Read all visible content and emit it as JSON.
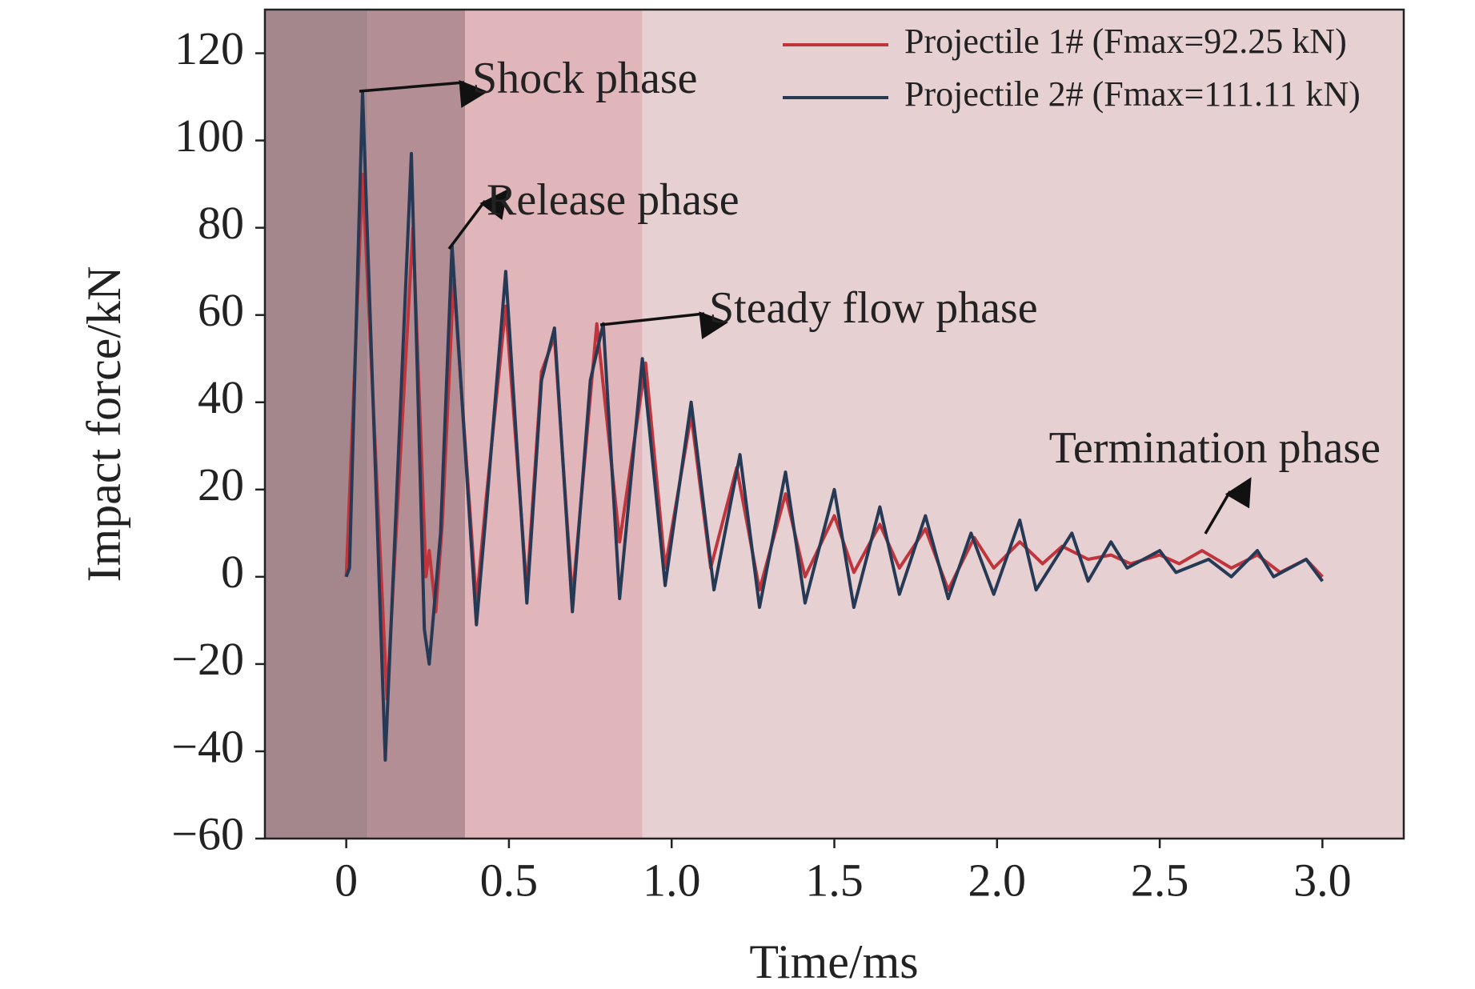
{
  "chart_data": {
    "type": "line",
    "xlabel": "Time/ms",
    "ylabel": "Impact force/kN",
    "xlim": [
      -0.25,
      3.25
    ],
    "ylim": [
      -60,
      130
    ],
    "xticks": [
      0,
      0.5,
      {
        "value": 1,
        "label": "1.0"
      },
      1.5,
      {
        "value": 2,
        "label": "2.0"
      },
      2.5,
      {
        "value": 3,
        "label": "3.0"
      }
    ],
    "yticks": [
      {
        "value": -60,
        "label": "−60"
      },
      {
        "value": -40,
        "label": "−40"
      },
      {
        "value": -20,
        "label": "−20"
      },
      0,
      20,
      40,
      60,
      80,
      100,
      120
    ],
    "shaded_regions": [
      {
        "x0": -0.25,
        "x1": 0.065,
        "color": "#a3878d"
      },
      {
        "x0": 0.065,
        "x1": 0.365,
        "color": "#b38e95"
      },
      {
        "x0": 0.365,
        "x1": 0.91,
        "color": "#e1b6ba"
      },
      {
        "x0": 0.91,
        "x1": 3.25,
        "color": "#e6d0d2"
      }
    ],
    "annotations": [
      "Shock phase",
      "Release phase",
      "Steady flow phase",
      "Termination phase"
    ],
    "series": [
      {
        "name": "Projectile 1# (Fmax=92.25 kN)",
        "color": "#c0343c",
        "x": [
          0,
          0.05,
          0.125,
          0.205,
          0.245,
          0.255,
          0.275,
          0.295,
          0.33,
          0.4,
          0.43,
          0.49,
          0.555,
          0.6,
          0.64,
          0.695,
          0.77,
          0.84,
          0.92,
          0.98,
          1.06,
          1.12,
          1.2,
          1.27,
          1.35,
          1.41,
          1.5,
          1.56,
          1.64,
          1.7,
          1.78,
          1.85,
          1.93,
          1.99,
          2.07,
          2.14,
          2.2,
          2.28,
          2.35,
          2.41,
          2.5,
          2.56,
          2.63,
          2.72,
          2.8,
          2.87,
          2.95,
          3.0
        ],
        "values": [
          0,
          92.25,
          -28,
          80,
          0,
          6,
          -8,
          12,
          68,
          -6,
          18,
          62,
          -3,
          47,
          55,
          -5,
          58,
          8,
          49,
          2,
          37,
          2,
          25,
          -3,
          19,
          0,
          14,
          1,
          12,
          2,
          11,
          -3,
          9,
          2,
          8,
          3,
          7,
          4,
          5,
          3,
          5,
          3,
          6,
          2,
          5,
          1,
          4,
          0
        ]
      },
      {
        "name": "Projectile 2# (Fmax=111.11 kN)",
        "color": "#263a55",
        "x": [
          0,
          0.01,
          0.05,
          0.12,
          0.2,
          0.24,
          0.255,
          0.29,
          0.325,
          0.4,
          0.43,
          0.49,
          0.555,
          0.6,
          0.64,
          0.695,
          0.75,
          0.79,
          0.84,
          0.91,
          0.98,
          1.06,
          1.13,
          1.21,
          1.27,
          1.35,
          1.41,
          1.5,
          1.56,
          1.64,
          1.7,
          1.78,
          1.85,
          1.92,
          1.99,
          2.07,
          2.12,
          2.23,
          2.28,
          2.35,
          2.4,
          2.5,
          2.55,
          2.65,
          2.72,
          2.8,
          2.85,
          2.95,
          3.0
        ],
        "values": [
          0,
          2,
          111.11,
          -42,
          97,
          -12,
          -20,
          10,
          76,
          -11,
          15,
          70,
          -6,
          45,
          57,
          -8,
          45,
          58,
          -5,
          50,
          -2,
          40,
          -3,
          28,
          -7,
          24,
          -6,
          20,
          -7,
          16,
          -4,
          14,
          -5,
          10,
          -4,
          13,
          -3,
          10,
          -1,
          8,
          2,
          6,
          1,
          4,
          0,
          6,
          0,
          4,
          -1
        ]
      }
    ]
  }
}
